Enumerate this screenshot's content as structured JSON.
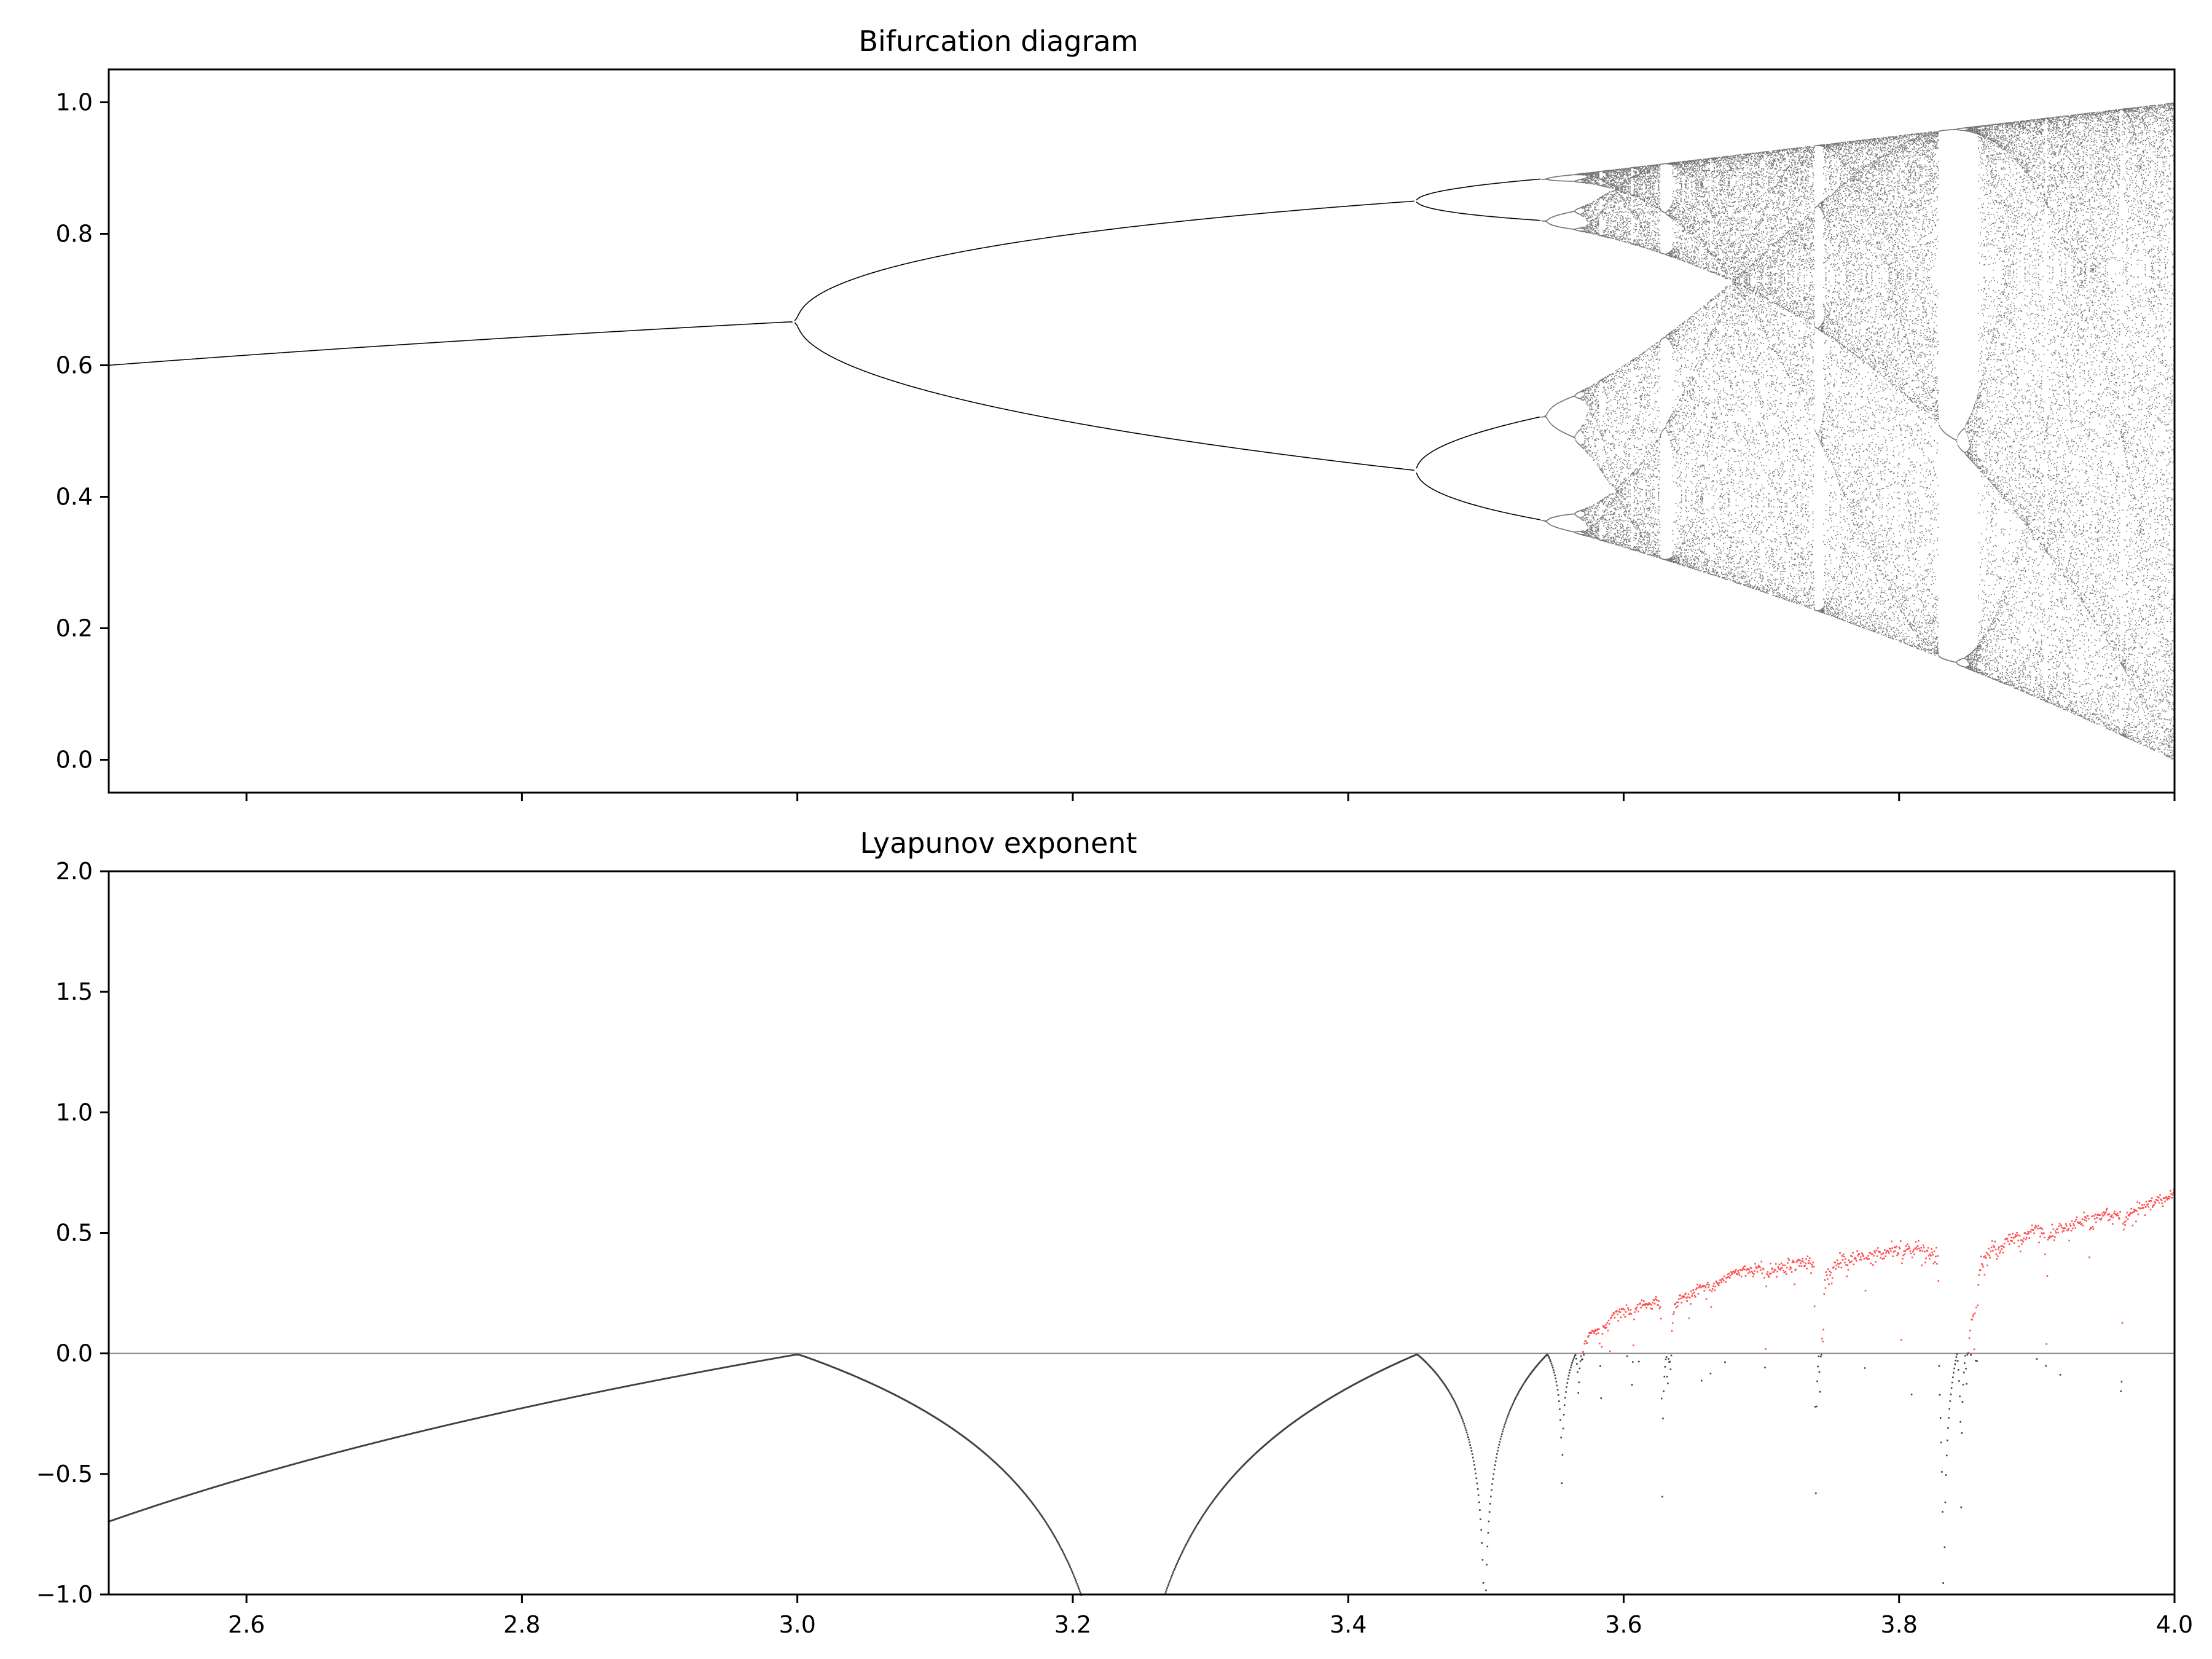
{
  "chart_data": [
    {
      "type": "scatter",
      "title": "Bifurcation diagram",
      "xlabel": "",
      "ylabel": "",
      "xlim": [
        2.5,
        4.0
      ],
      "ylim": [
        -0.05,
        1.05
      ],
      "x_ticks": [
        "2.6",
        "2.8",
        "3.0",
        "3.2",
        "3.4",
        "3.6",
        "3.8",
        "4.0"
      ],
      "x_tick_labels_visible": false,
      "y_ticks": [
        "0.0",
        "0.2",
        "0.4",
        "0.6",
        "0.8",
        "1.0"
      ],
      "grid": false,
      "legend": "none",
      "point_color": "#000000",
      "series": [
        {
          "label": "",
          "x": [
            2.5,
            2.6,
            2.7,
            2.8,
            2.9,
            3.0
          ],
          "y": [
            0.6,
            0.6154,
            0.6296,
            0.6429,
            0.6552,
            0.6667
          ]
        },
        {
          "label": "",
          "x": [
            3.0,
            3.05,
            3.1,
            3.15,
            3.2,
            3.25,
            3.3,
            3.35,
            3.4,
            3.449
          ],
          "y": [
            0.6667,
            0.7489,
            0.7646,
            0.7786,
            0.7995,
            0.8127,
            0.8236,
            0.8336,
            0.8422,
            0.8499
          ]
        },
        {
          "label": "",
          "x": [
            3.0,
            3.05,
            3.1,
            3.15,
            3.2,
            3.25,
            3.3,
            3.35,
            3.4,
            3.449
          ],
          "y": [
            0.6667,
            0.5752,
            0.558,
            0.533,
            0.513,
            0.4952,
            0.4794,
            0.4654,
            0.452,
            0.44
          ]
        }
      ]
    },
    {
      "type": "scatter",
      "title": "Lyapunov exponent",
      "xlabel": "",
      "ylabel": "",
      "xlim": [
        2.5,
        4.0
      ],
      "ylim": [
        -1.0,
        2.0
      ],
      "x_ticks": [
        "2.6",
        "2.8",
        "3.0",
        "3.2",
        "3.4",
        "3.6",
        "3.8",
        "4.0"
      ],
      "y_ticks": [
        "−1.0",
        "−0.5",
        "0.0",
        "0.5",
        "1.0",
        "1.5",
        "2.0"
      ],
      "grid": false,
      "legend": "none",
      "reference_line_y": 0.0,
      "colors": {
        "negative": "#000000",
        "positive": "#ff0000",
        "zero_line": "#808080"
      },
      "series": [
        {
          "label": "",
          "x": [
            2.5,
            2.6,
            2.7,
            2.8,
            2.9,
            3.0,
            3.1,
            3.2,
            3.207,
            3.265,
            3.3,
            3.4,
            3.449
          ],
          "y": [
            -0.693,
            -0.511,
            -0.357,
            -0.223,
            -0.105,
            0.0,
            -0.223,
            -0.916,
            -1.0,
            -1.0,
            -0.734,
            -0.175,
            0.0
          ]
        },
        {
          "label": "",
          "x": [
            3.5,
            3.545,
            3.56,
            3.6,
            3.7,
            3.8,
            3.83,
            3.85,
            3.9,
            4.0
          ],
          "y": [
            -0.98,
            0.0,
            -0.6,
            0.18,
            0.36,
            0.42,
            0.0,
            0.04,
            0.5,
            0.69
          ]
        }
      ]
    }
  ]
}
